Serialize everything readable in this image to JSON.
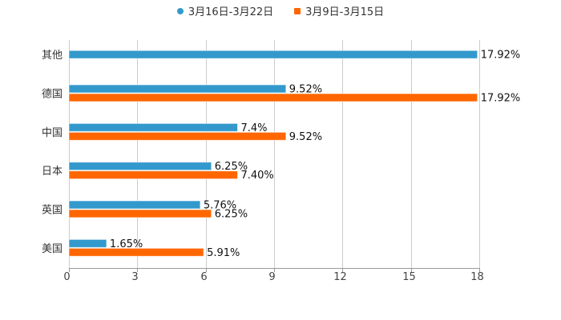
{
  "chart_data": {
    "type": "bar",
    "orientation": "horizontal",
    "title": "",
    "xlabel": "",
    "ylabel": "",
    "xlim": [
      0,
      18
    ],
    "xticks": [
      0,
      3,
      6,
      9,
      12,
      15,
      18
    ],
    "grid": true,
    "legend_position": "top",
    "categories": [
      "其他",
      "德国",
      "中国",
      "日本",
      "英国",
      "美国"
    ],
    "series": [
      {
        "name": "3月16日-3月22日",
        "color": "#3399cc",
        "values": [
          17.92,
          9.52,
          7.4,
          6.25,
          5.76,
          1.65
        ],
        "labels": [
          "17.92%",
          "9.52%",
          "7.4%",
          "6.25%",
          "5.76%",
          "1.65%"
        ]
      },
      {
        "name": "3月9日-3月15日",
        "color": "#ff6600",
        "values": [
          null,
          17.92,
          9.52,
          7.4,
          6.25,
          5.91
        ],
        "labels": [
          "",
          "17.92%",
          "9.52%",
          "7.40%",
          "6.25%",
          "5.91%"
        ]
      }
    ]
  },
  "legend": {
    "items": [
      {
        "label": "3月16日-3月22日",
        "color": "#3399cc"
      },
      {
        "label": "3月9日-3月15日",
        "color": "#ff6600"
      }
    ]
  }
}
